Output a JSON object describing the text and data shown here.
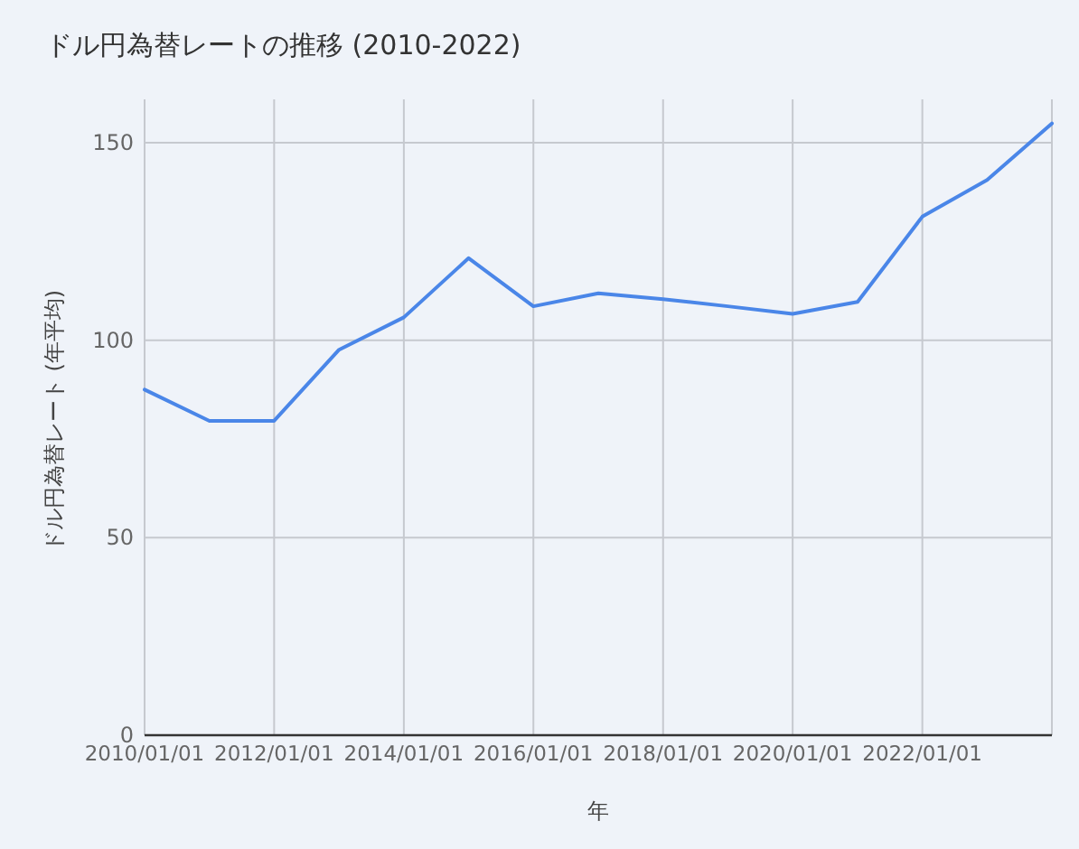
{
  "chart_data": {
    "type": "line",
    "title": "ドル円為替レートの推移 (2010-2022)",
    "xlabel": "年",
    "ylabel": "ドル円為替レート (年平均)",
    "x": [
      "2010-01-01",
      "2011-01-01",
      "2012-01-01",
      "2013-01-01",
      "2014-01-01",
      "2015-01-01",
      "2016-01-01",
      "2017-01-01",
      "2018-01-01",
      "2019-01-01",
      "2020-01-01",
      "2021-01-01",
      "2022-01-01",
      "2023-01-01",
      "2024-01-01"
    ],
    "series": [
      {
        "color": "#4a86e8",
        "values": [
          87.5,
          79.6,
          79.6,
          97.6,
          105.8,
          120.8,
          108.6,
          111.9,
          110.4,
          108.6,
          106.7,
          109.7,
          131.3,
          140.6,
          154.9
        ]
      }
    ],
    "xlim": [
      "2010-01-01",
      "2024-01-01"
    ],
    "xticks": [
      {
        "value": "2010-01-01",
        "label": "2010/01/01"
      },
      {
        "value": "2012-01-01",
        "label": "2012/01/01"
      },
      {
        "value": "2014-01-01",
        "label": "2014/01/01"
      },
      {
        "value": "2016-01-01",
        "label": "2016/01/01"
      },
      {
        "value": "2018-01-01",
        "label": "2018/01/01"
      },
      {
        "value": "2020-01-01",
        "label": "2020/01/01"
      },
      {
        "value": "2022-01-01",
        "label": "2022/01/01"
      }
    ],
    "ylim": [
      0,
      161
    ],
    "yticks": [
      0,
      50,
      100,
      150
    ],
    "grid": true,
    "marker": "none",
    "line_style": "solid"
  }
}
